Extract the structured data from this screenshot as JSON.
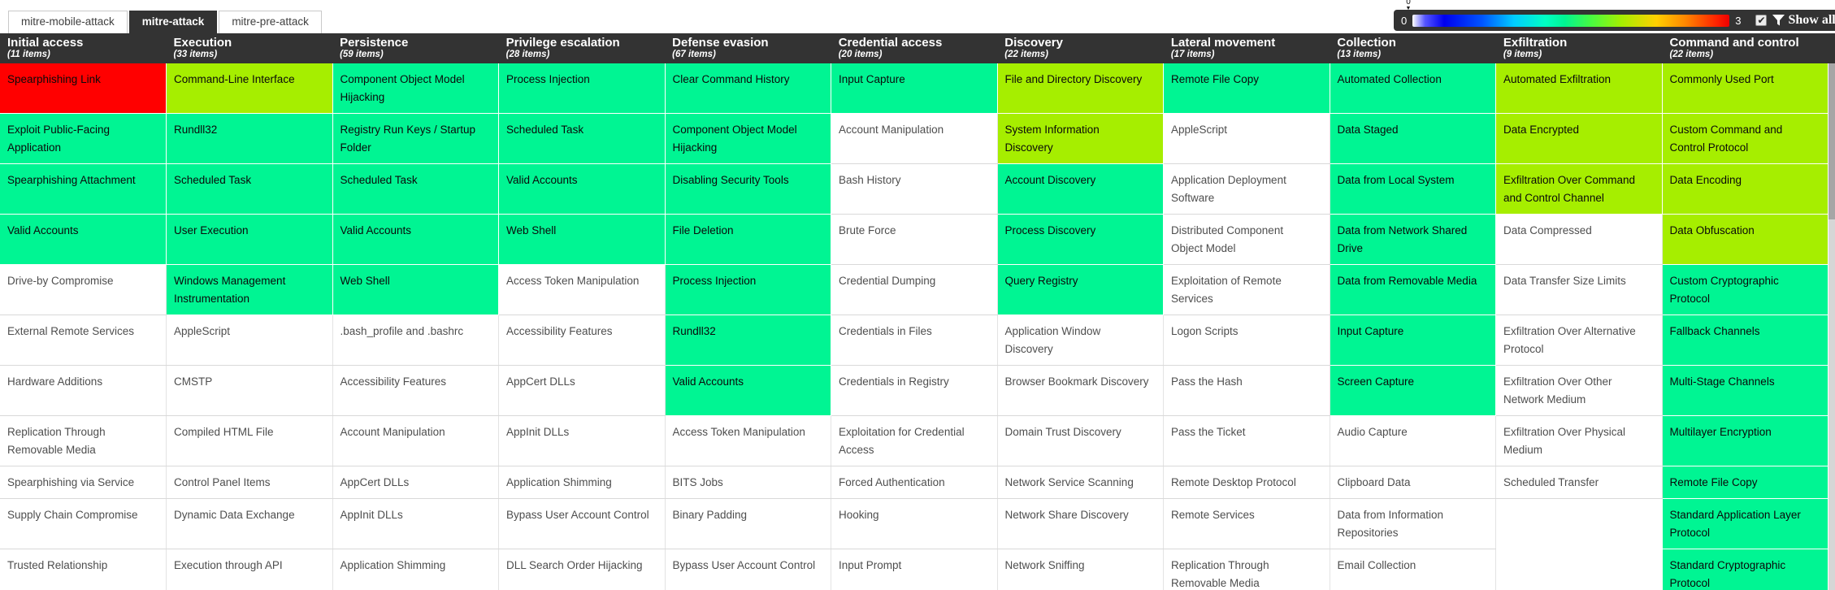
{
  "tabs": [
    {
      "label": "mitre-mobile-attack",
      "active": false
    },
    {
      "label": "mitre-attack",
      "active": true
    },
    {
      "label": "mitre-pre-attack",
      "active": false
    }
  ],
  "controls": {
    "gradient_min": "0",
    "gradient_max": "3",
    "marker_value": "0",
    "checkbox_checked": true,
    "checkbox_glyph": "✔",
    "show_all_label": "Show all"
  },
  "score_colors": {
    "0": "#ffffff",
    "1": "#00f593",
    "2": "#a6ee00",
    "3": "#ff0000"
  },
  "board": {
    "columns": [
      {
        "name": "Initial access",
        "count_label": "(11 items)",
        "items": [
          {
            "label": "Spearphishing Link",
            "score": 3
          },
          {
            "label": "Exploit Public-Facing Application",
            "score": 1
          },
          {
            "label": "Spearphishing Attachment",
            "score": 1
          },
          {
            "label": "Valid Accounts",
            "score": 1
          },
          {
            "label": "Drive-by Compromise",
            "score": 0
          },
          {
            "label": "External Remote Services",
            "score": 0
          },
          {
            "label": "Hardware Additions",
            "score": 0
          },
          {
            "label": "Replication Through Removable Media",
            "score": 0
          },
          {
            "label": "Spearphishing via Service",
            "score": 0
          },
          {
            "label": "Supply Chain Compromise",
            "score": 0
          },
          {
            "label": "Trusted Relationship",
            "score": 0
          }
        ]
      },
      {
        "name": "Execution",
        "count_label": "(33 items)",
        "items": [
          {
            "label": "Command-Line Interface",
            "score": 2
          },
          {
            "label": "Rundll32",
            "score": 1
          },
          {
            "label": "Scheduled Task",
            "score": 1
          },
          {
            "label": "User Execution",
            "score": 1
          },
          {
            "label": "Windows Management Instrumentation",
            "score": 1
          },
          {
            "label": "AppleScript",
            "score": 0
          },
          {
            "label": "CMSTP",
            "score": 0
          },
          {
            "label": "Compiled HTML File",
            "score": 0
          },
          {
            "label": "Control Panel Items",
            "score": 0
          },
          {
            "label": "Dynamic Data Exchange",
            "score": 0
          },
          {
            "label": "Execution through API",
            "score": 0
          }
        ]
      },
      {
        "name": "Persistence",
        "count_label": "(59 items)",
        "items": [
          {
            "label": "Component Object Model Hijacking",
            "score": 1
          },
          {
            "label": "Registry Run Keys / Startup Folder",
            "score": 1
          },
          {
            "label": "Scheduled Task",
            "score": 1
          },
          {
            "label": "Valid Accounts",
            "score": 1
          },
          {
            "label": "Web Shell",
            "score": 1
          },
          {
            "label": ".bash_profile and .bashrc",
            "score": 0
          },
          {
            "label": "Accessibility Features",
            "score": 0
          },
          {
            "label": "Account Manipulation",
            "score": 0
          },
          {
            "label": "AppCert DLLs",
            "score": 0
          },
          {
            "label": "AppInit DLLs",
            "score": 0
          },
          {
            "label": "Application Shimming",
            "score": 0
          }
        ]
      },
      {
        "name": "Privilege escalation",
        "count_label": "(28 items)",
        "items": [
          {
            "label": "Process Injection",
            "score": 1
          },
          {
            "label": "Scheduled Task",
            "score": 1
          },
          {
            "label": "Valid Accounts",
            "score": 1
          },
          {
            "label": "Web Shell",
            "score": 1
          },
          {
            "label": "Access Token Manipulation",
            "score": 0
          },
          {
            "label": "Accessibility Features",
            "score": 0
          },
          {
            "label": "AppCert DLLs",
            "score": 0
          },
          {
            "label": "AppInit DLLs",
            "score": 0
          },
          {
            "label": "Application Shimming",
            "score": 0
          },
          {
            "label": "Bypass User Account Control",
            "score": 0
          },
          {
            "label": "DLL Search Order Hijacking",
            "score": 0
          }
        ]
      },
      {
        "name": "Defense evasion",
        "count_label": "(67 items)",
        "items": [
          {
            "label": "Clear Command History",
            "score": 1
          },
          {
            "label": "Component Object Model Hijacking",
            "score": 1
          },
          {
            "label": "Disabling Security Tools",
            "score": 1
          },
          {
            "label": "File Deletion",
            "score": 1
          },
          {
            "label": "Process Injection",
            "score": 1
          },
          {
            "label": "Rundll32",
            "score": 1
          },
          {
            "label": "Valid Accounts",
            "score": 1
          },
          {
            "label": "Access Token Manipulation",
            "score": 0
          },
          {
            "label": "BITS Jobs",
            "score": 0
          },
          {
            "label": "Binary Padding",
            "score": 0
          },
          {
            "label": "Bypass User Account Control",
            "score": 0
          }
        ]
      },
      {
        "name": "Credential access",
        "count_label": "(20 items)",
        "items": [
          {
            "label": "Input Capture",
            "score": 1
          },
          {
            "label": "Account Manipulation",
            "score": 0
          },
          {
            "label": "Bash History",
            "score": 0
          },
          {
            "label": "Brute Force",
            "score": 0
          },
          {
            "label": "Credential Dumping",
            "score": 0
          },
          {
            "label": "Credentials in Files",
            "score": 0
          },
          {
            "label": "Credentials in Registry",
            "score": 0
          },
          {
            "label": "Exploitation for Credential Access",
            "score": 0
          },
          {
            "label": "Forced Authentication",
            "score": 0
          },
          {
            "label": "Hooking",
            "score": 0
          },
          {
            "label": "Input Prompt",
            "score": 0
          }
        ]
      },
      {
        "name": "Discovery",
        "count_label": "(22 items)",
        "items": [
          {
            "label": "File and Directory Discovery",
            "score": 2
          },
          {
            "label": "System Information Discovery",
            "score": 2
          },
          {
            "label": "Account Discovery",
            "score": 1
          },
          {
            "label": "Process Discovery",
            "score": 1
          },
          {
            "label": "Query Registry",
            "score": 1
          },
          {
            "label": "Application Window Discovery",
            "score": 0
          },
          {
            "label": "Browser Bookmark Discovery",
            "score": 0
          },
          {
            "label": "Domain Trust Discovery",
            "score": 0
          },
          {
            "label": "Network Service Scanning",
            "score": 0
          },
          {
            "label": "Network Share Discovery",
            "score": 0
          },
          {
            "label": "Network Sniffing",
            "score": 0
          }
        ]
      },
      {
        "name": "Lateral movement",
        "count_label": "(17 items)",
        "items": [
          {
            "label": "Remote File Copy",
            "score": 1
          },
          {
            "label": "AppleScript",
            "score": 0
          },
          {
            "label": "Application Deployment Software",
            "score": 0
          },
          {
            "label": "Distributed Component Object Model",
            "score": 0
          },
          {
            "label": "Exploitation of Remote Services",
            "score": 0
          },
          {
            "label": "Logon Scripts",
            "score": 0
          },
          {
            "label": "Pass the Hash",
            "score": 0
          },
          {
            "label": "Pass the Ticket",
            "score": 0
          },
          {
            "label": "Remote Desktop Protocol",
            "score": 0
          },
          {
            "label": "Remote Services",
            "score": 0
          },
          {
            "label": "Replication Through Removable Media",
            "score": 0
          }
        ]
      },
      {
        "name": "Collection",
        "count_label": "(13 items)",
        "items": [
          {
            "label": "Automated Collection",
            "score": 1
          },
          {
            "label": "Data Staged",
            "score": 1
          },
          {
            "label": "Data from Local System",
            "score": 1
          },
          {
            "label": "Data from Network Shared Drive",
            "score": 1
          },
          {
            "label": "Data from Removable Media",
            "score": 1
          },
          {
            "label": "Input Capture",
            "score": 1
          },
          {
            "label": "Screen Capture",
            "score": 1
          },
          {
            "label": "Audio Capture",
            "score": 0
          },
          {
            "label": "Clipboard Data",
            "score": 0
          },
          {
            "label": "Data from Information Repositories",
            "score": 0
          },
          {
            "label": "Email Collection",
            "score": 0
          }
        ]
      },
      {
        "name": "Exfiltration",
        "count_label": "(9 items)",
        "items": [
          {
            "label": "Automated Exfiltration",
            "score": 2
          },
          {
            "label": "Data Encrypted",
            "score": 2
          },
          {
            "label": "Exfiltration Over Command and Control Channel",
            "score": 2
          },
          {
            "label": "Data Compressed",
            "score": 0
          },
          {
            "label": "Data Transfer Size Limits",
            "score": 0
          },
          {
            "label": "Exfiltration Over Alternative Protocol",
            "score": 0
          },
          {
            "label": "Exfiltration Over Other Network Medium",
            "score": 0
          },
          {
            "label": "Exfiltration Over Physical Medium",
            "score": 0
          },
          {
            "label": "Scheduled Transfer",
            "score": 0
          },
          null,
          null
        ]
      },
      {
        "name": "Command and control",
        "count_label": "(22 items)",
        "items": [
          {
            "label": "Commonly Used Port",
            "score": 2
          },
          {
            "label": "Custom Command and Control Protocol",
            "score": 2
          },
          {
            "label": "Data Encoding",
            "score": 2
          },
          {
            "label": "Data Obfuscation",
            "score": 2
          },
          {
            "label": "Custom Cryptographic Protocol",
            "score": 1
          },
          {
            "label": "Fallback Channels",
            "score": 1
          },
          {
            "label": "Multi-Stage Channels",
            "score": 1
          },
          {
            "label": "Multilayer Encryption",
            "score": 1
          },
          {
            "label": "Remote File Copy",
            "score": 1
          },
          {
            "label": "Standard Application Layer Protocol",
            "score": 1
          },
          {
            "label": "Standard Cryptographic Protocol",
            "score": 1
          }
        ]
      }
    ]
  }
}
